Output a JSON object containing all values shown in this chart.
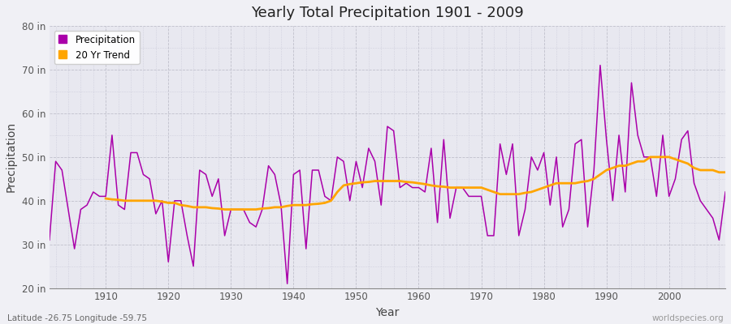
{
  "title": "Yearly Total Precipitation 1901 - 2009",
  "xlabel": "Year",
  "ylabel": "Precipitation",
  "background_color": "#f0f0f5",
  "plot_bg_color": "#e8e8f0",
  "precip_color": "#aa00aa",
  "trend_color": "#FFA500",
  "ylim": [
    20,
    80
  ],
  "xlim": [
    1901,
    2009
  ],
  "yticks": [
    20,
    30,
    40,
    50,
    60,
    70,
    80
  ],
  "ytick_labels": [
    "20 in",
    "30 in",
    "40 in",
    "50 in",
    "60 in",
    "70 in",
    "80 in"
  ],
  "xticks": [
    1910,
    1920,
    1930,
    1940,
    1950,
    1960,
    1970,
    1980,
    1990,
    2000
  ],
  "years": [
    1901,
    1902,
    1903,
    1904,
    1905,
    1906,
    1907,
    1908,
    1909,
    1910,
    1911,
    1912,
    1913,
    1914,
    1915,
    1916,
    1917,
    1918,
    1919,
    1920,
    1921,
    1922,
    1923,
    1924,
    1925,
    1926,
    1927,
    1928,
    1929,
    1930,
    1931,
    1932,
    1933,
    1934,
    1935,
    1936,
    1937,
    1938,
    1939,
    1940,
    1941,
    1942,
    1943,
    1944,
    1945,
    1946,
    1947,
    1948,
    1949,
    1950,
    1951,
    1952,
    1953,
    1954,
    1955,
    1956,
    1957,
    1958,
    1959,
    1960,
    1961,
    1962,
    1963,
    1964,
    1965,
    1966,
    1967,
    1968,
    1969,
    1970,
    1971,
    1972,
    1973,
    1974,
    1975,
    1976,
    1977,
    1978,
    1979,
    1980,
    1981,
    1982,
    1983,
    1984,
    1985,
    1986,
    1987,
    1988,
    1989,
    1990,
    1991,
    1992,
    1993,
    1994,
    1995,
    1996,
    1997,
    1998,
    1999,
    2000,
    2001,
    2002,
    2003,
    2004,
    2005,
    2006,
    2007,
    2008,
    2009
  ],
  "precip": [
    31,
    49,
    47,
    38,
    29,
    38,
    39,
    42,
    41,
    41,
    55,
    39,
    38,
    51,
    51,
    46,
    45,
    37,
    40,
    26,
    40,
    40,
    32,
    25,
    47,
    46,
    41,
    45,
    32,
    38,
    38,
    38,
    35,
    34,
    38,
    48,
    46,
    39,
    21,
    46,
    47,
    29,
    47,
    47,
    41,
    40,
    50,
    49,
    40,
    49,
    43,
    52,
    49,
    39,
    57,
    56,
    43,
    44,
    43,
    43,
    42,
    52,
    35,
    54,
    36,
    43,
    43,
    41,
    41,
    41,
    32,
    32,
    53,
    46,
    53,
    32,
    38,
    50,
    47,
    51,
    39,
    50,
    34,
    38,
    53,
    54,
    34,
    47,
    71,
    54,
    40,
    55,
    42,
    67,
    55,
    50,
    50,
    41,
    55,
    41,
    45,
    54,
    56,
    44,
    40,
    38,
    36,
    31,
    42
  ],
  "trend_years": [
    1910,
    1911,
    1912,
    1913,
    1914,
    1915,
    1916,
    1917,
    1918,
    1919,
    1920,
    1921,
    1922,
    1923,
    1924,
    1925,
    1926,
    1927,
    1928,
    1929,
    1930,
    1931,
    1932,
    1933,
    1934,
    1935,
    1936,
    1937,
    1938,
    1939,
    1940,
    1941,
    1942,
    1943,
    1944,
    1945,
    1946,
    1947,
    1948,
    1949,
    1950,
    1951,
    1952,
    1953,
    1954,
    1955,
    1956,
    1957,
    1958,
    1959,
    1960,
    1961,
    1962,
    1963,
    1964,
    1965,
    1966,
    1967,
    1968,
    1969,
    1970,
    1971,
    1972,
    1973,
    1974,
    1975,
    1976,
    1977,
    1978,
    1979,
    1980,
    1981,
    1982,
    1983,
    1984,
    1985,
    1986,
    1987,
    1988,
    1989,
    1990,
    1991,
    1992,
    1993,
    1994,
    1995,
    1996,
    1997,
    1998,
    1999,
    2000,
    2001,
    2002,
    2003,
    2004,
    2005,
    2006,
    2007,
    2008,
    2009
  ],
  "trend": [
    40.5,
    40.3,
    40.2,
    40.0,
    40.0,
    40.0,
    40.0,
    40.0,
    40.0,
    39.8,
    39.5,
    39.5,
    39.0,
    38.8,
    38.5,
    38.5,
    38.5,
    38.3,
    38.2,
    38.0,
    38.0,
    38.0,
    38.0,
    38.0,
    38.0,
    38.2,
    38.3,
    38.5,
    38.5,
    38.8,
    39.0,
    39.0,
    39.0,
    39.2,
    39.3,
    39.5,
    40.0,
    42.0,
    43.5,
    43.8,
    44.0,
    44.2,
    44.3,
    44.5,
    44.5,
    44.5,
    44.5,
    44.5,
    44.3,
    44.2,
    44.0,
    43.8,
    43.5,
    43.3,
    43.2,
    43.0,
    43.0,
    43.0,
    43.0,
    43.0,
    43.0,
    42.5,
    42.0,
    41.5,
    41.5,
    41.5,
    41.5,
    41.8,
    42.0,
    42.5,
    43.0,
    43.5,
    44.0,
    44.0,
    44.0,
    44.0,
    44.3,
    44.5,
    45.0,
    46.0,
    47.0,
    47.5,
    48.0,
    48.0,
    48.5,
    49.0,
    49.0,
    50.0,
    50.0,
    50.0,
    50.0,
    49.5,
    49.0,
    48.5,
    47.5,
    47.0,
    47.0,
    47.0,
    46.5,
    46.5
  ],
  "subtitle": "Latitude -26.75 Longitude -59.75",
  "watermark": "worldspecies.org",
  "legend_precip_label": "Precipitation",
  "legend_trend_label": "20 Yr Trend"
}
